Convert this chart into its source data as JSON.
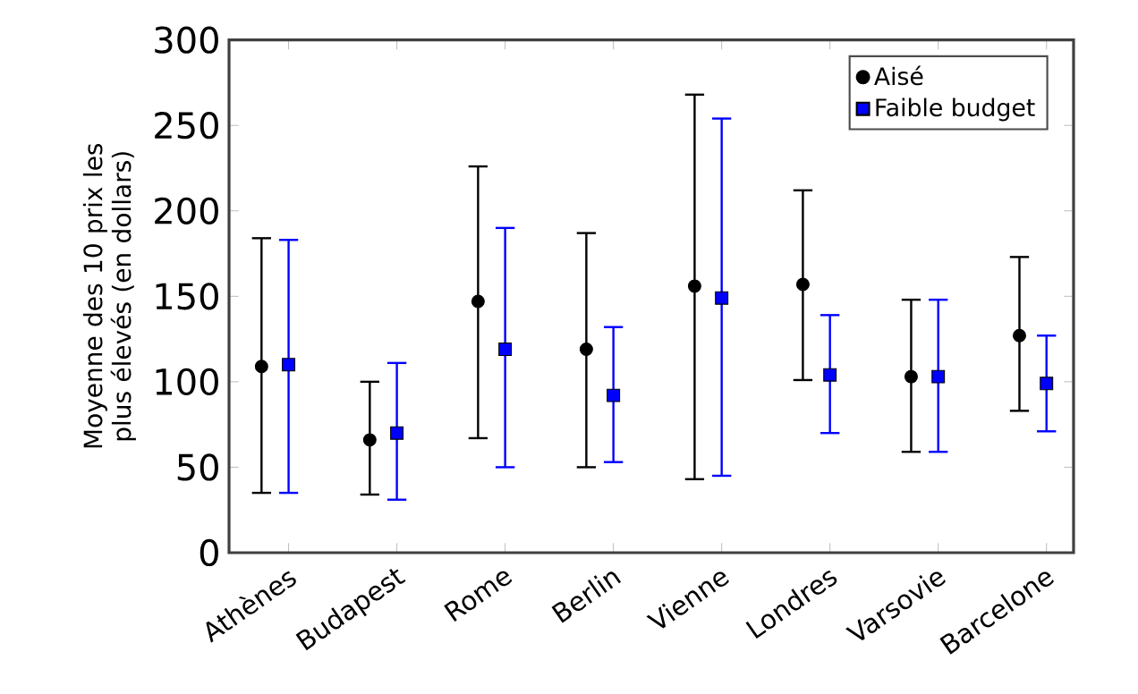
{
  "chart_data": {
    "type": "scatter",
    "ylabel": "Moyenne des 10 prix les plus élevés (en dollars)",
    "categories": [
      "Athènes",
      "Budapest",
      "Rome",
      "Berlin",
      "Vienne",
      "Londres",
      "Varsovie",
      "Barcelone"
    ],
    "series": [
      {
        "name": "Aisé",
        "color": "#000000",
        "marker": "circle",
        "values": [
          109,
          66,
          147,
          119,
          156,
          157,
          103,
          127
        ],
        "errors": [
          [
            35,
            184
          ],
          [
            34,
            100
          ],
          [
            67,
            226
          ],
          [
            50,
            187
          ],
          [
            43,
            268
          ],
          [
            101,
            212
          ],
          [
            59,
            148
          ],
          [
            83,
            173
          ]
        ]
      },
      {
        "name": "Faible budget",
        "color": "#0000ff",
        "marker": "square",
        "values": [
          110,
          70,
          119,
          92,
          149,
          104,
          103,
          99
        ],
        "errors": [
          [
            35,
            183
          ],
          [
            31,
            111
          ],
          [
            50,
            190
          ],
          [
            53,
            132
          ],
          [
            45,
            254
          ],
          [
            70,
            139
          ],
          [
            59,
            148
          ],
          [
            71,
            127
          ]
        ]
      }
    ],
    "ylim": [
      0,
      300
    ],
    "yticks": [
      0,
      50,
      100,
      150,
      200,
      250,
      300
    ],
    "legend": "top right"
  }
}
